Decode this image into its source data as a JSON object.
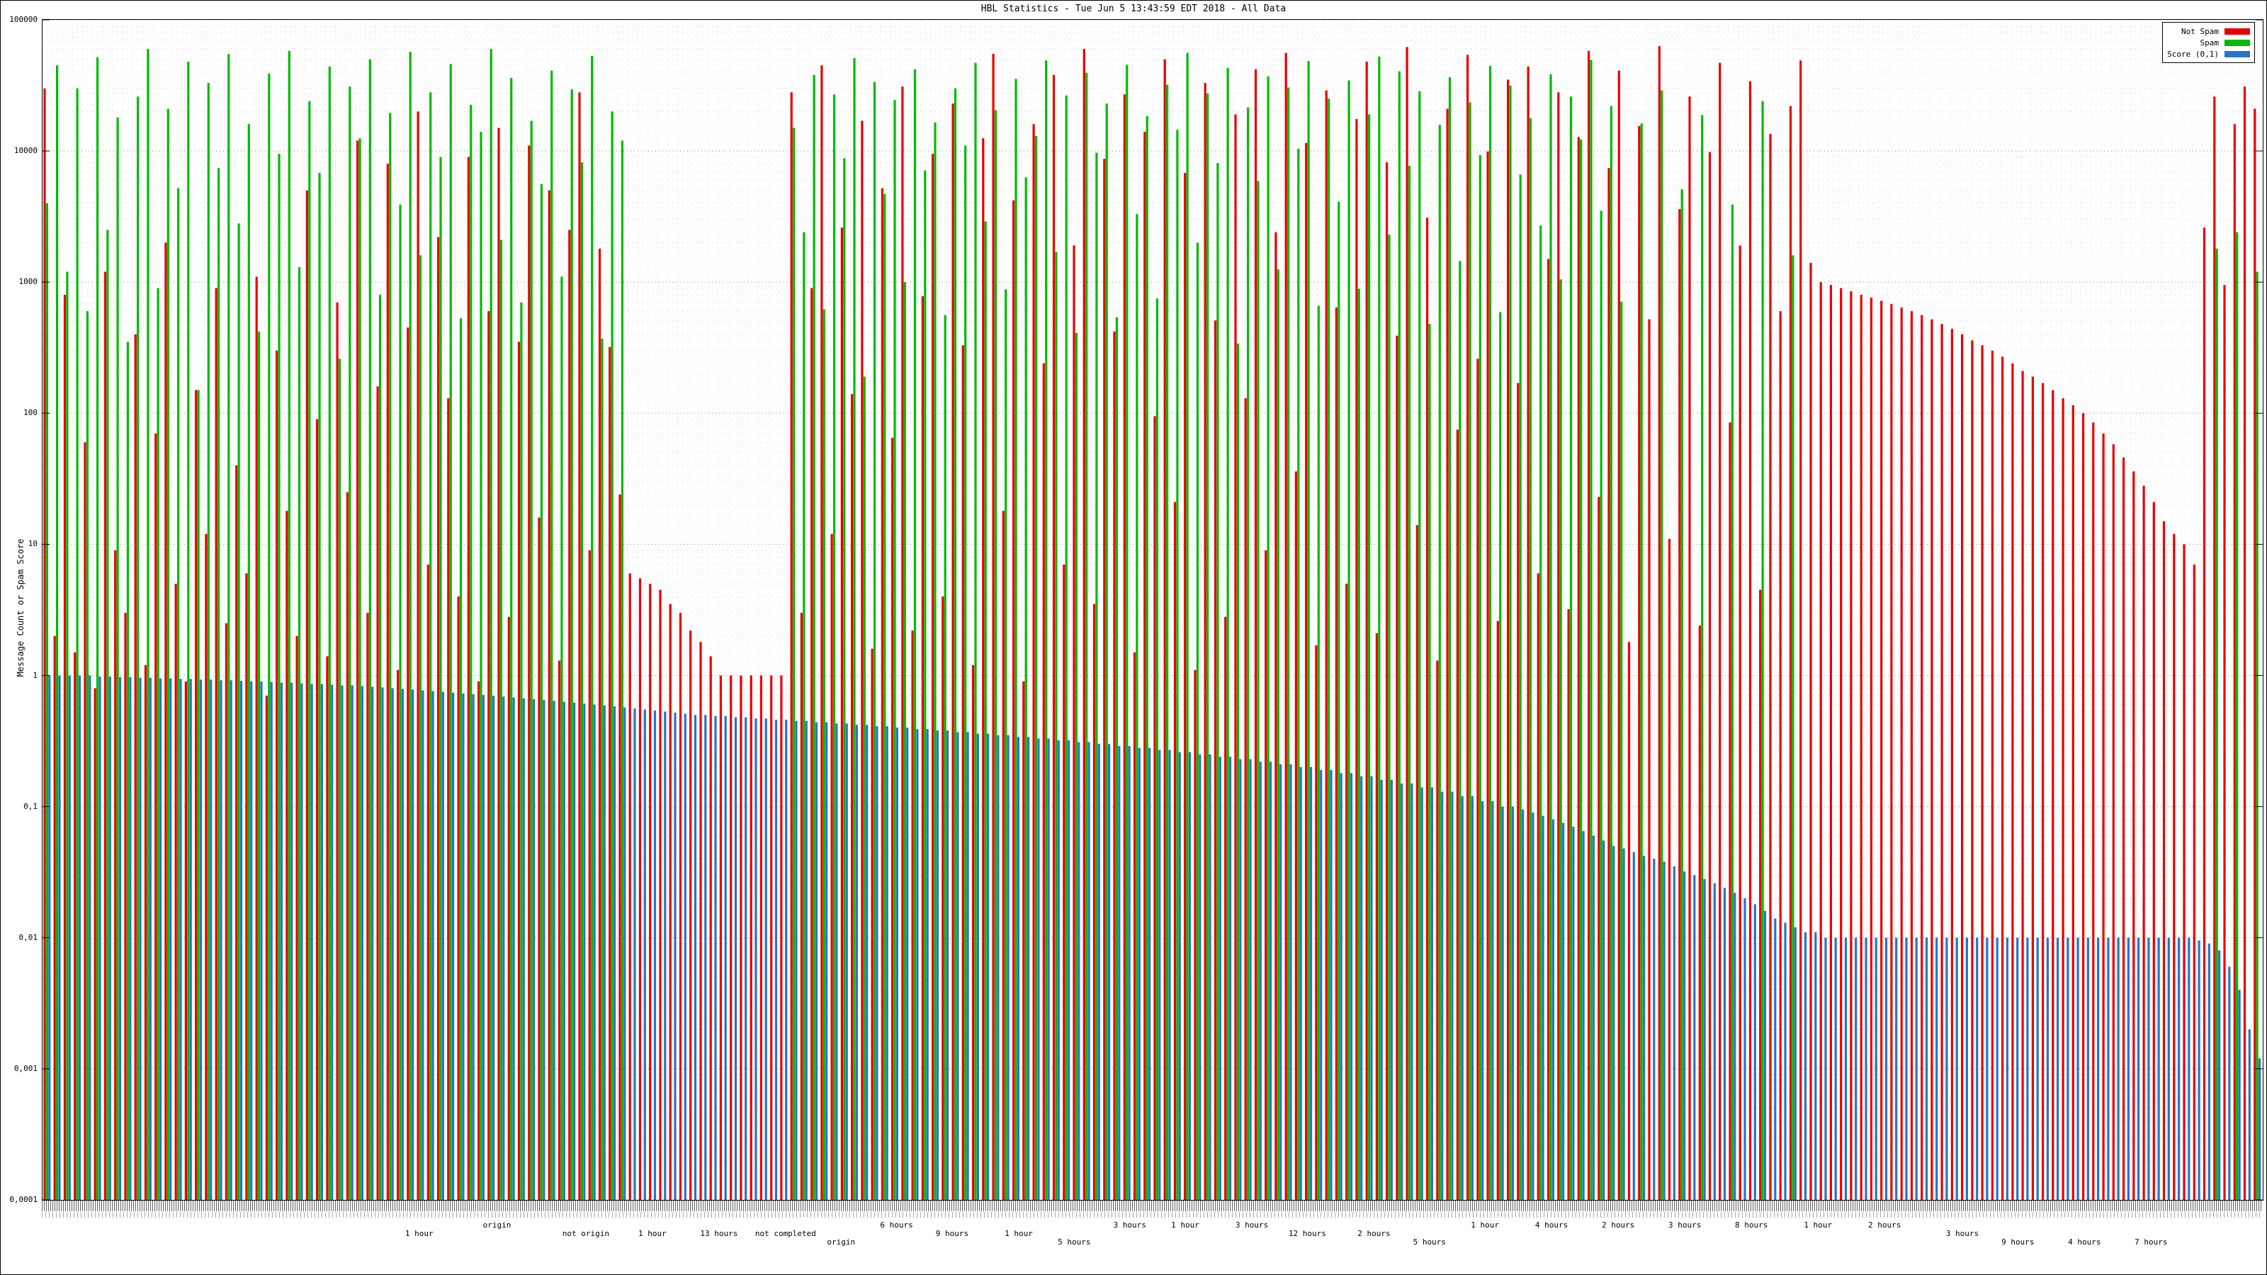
{
  "title": "HBL Statistics - Tue Jun 5 13:43:59 EDT 2018 - All Data",
  "chart_data": {
    "type": "bar",
    "title": "HBL Statistics - Tue Jun 5 13:43:59 EDT 2018 - All Data",
    "xlabel": "",
    "ylabel": "Message Count or Spam Score",
    "y_scale": "log",
    "ylim": [
      0.0001,
      100000
    ],
    "y_tick_labels": [
      "100000",
      "10000",
      "1000",
      "100",
      "10",
      "1",
      "0,1",
      "0,01",
      "0,001",
      "0,0001"
    ],
    "grid": true,
    "legend_position": "top-right",
    "x_count": 220,
    "x_labels_illegible": true,
    "series": [
      {
        "name": "Not Spam",
        "color": "#e80000",
        "values": [
          30000,
          2,
          800,
          1.5,
          60,
          0.8,
          1200,
          9,
          3,
          400,
          1.2,
          70,
          2000,
          5,
          0.9,
          150,
          12,
          900,
          2.5,
          40,
          6,
          1100,
          0.7,
          300,
          18,
          2,
          5000,
          90,
          1.4,
          700,
          25,
          12000,
          3,
          160,
          8000,
          1.1,
          450,
          20000,
          7,
          2200,
          130,
          4,
          9000,
          0.9,
          600,
          15000,
          2.8,
          350,
          11000,
          16,
          5000,
          1.3,
          2500,
          28000,
          9,
          1800,
          320,
          24,
          6,
          5.5,
          5,
          4.5,
          3.5,
          3,
          2.2,
          1.8,
          1.4,
          1,
          1,
          1,
          1,
          1,
          1,
          1,
          28000,
          3,
          900,
          45000,
          12,
          2600,
          140,
          17000,
          1.6,
          5200,
          65,
          31000,
          2.2,
          780,
          9500,
          4,
          23000,
          330,
          1.2,
          12500,
          55000,
          18,
          4200,
          0.9,
          16000,
          240,
          38000,
          7,
          1900,
          60000,
          3.5,
          8700,
          420,
          27000,
          1.5,
          14000,
          95,
          50000,
          21,
          6800,
          1.1,
          33000,
          510,
          2.8,
          19000,
          130,
          42000,
          9,
          2400,
          56000,
          36,
          11500,
          1.7,
          29000,
          640,
          5,
          17500,
          48000,
          2.1,
          8200,
          390,
          62000,
          14,
          3100,
          1.3,
          21000,
          75,
          54000,
          260,
          9900,
          2.6,
          35000,
          170,
          44000,
          6,
          1500,
          28000,
          3.2,
          12800,
          58000,
          23,
          7400,
          41000,
          1.8,
          15500,
          520,
          63000,
          11,
          3600,
          26000,
          2.4,
          9800,
          47000,
          85,
          1900,
          34000,
          4.5,
          13500,
          600,
          22000,
          49000,
          1400,
          1000,
          950,
          900,
          850,
          800,
          760,
          720,
          680,
          640,
          600,
          560,
          520,
          480,
          440,
          400,
          360,
          330,
          300,
          270,
          240,
          210,
          190,
          170,
          150,
          130,
          115,
          100,
          85,
          70,
          58,
          46,
          36,
          28,
          21,
          15,
          12,
          10,
          7,
          2600,
          26000,
          950,
          16000,
          31000,
          21000
        ]
      },
      {
        "name": "Spam",
        "color": "#00bb00",
        "values": [
          4000,
          45000,
          1200,
          30000,
          600,
          52000,
          2500,
          18000,
          350,
          26000,
          60000,
          900,
          21000,
          5200,
          48000,
          150,
          33000,
          7400,
          55000,
          2800,
          16000,
          420,
          39000,
          9500,
          58000,
          1300,
          24000,
          6800,
          44000,
          260,
          31000,
          12500,
          50000,
          800,
          19500,
          3900,
          57000,
          1600,
          28000,
          9000,
          46000,
          530,
          22500,
          14000,
          60000,
          2100,
          36000,
          700,
          17000,
          5600,
          41000,
          1100,
          29500,
          8200,
          53000,
          370,
          20000,
          12000,
          0,
          0,
          0,
          0,
          0,
          0,
          0,
          0,
          0,
          0,
          0,
          0,
          0,
          0,
          0,
          0,
          15000,
          2400,
          38000,
          620,
          27000,
          8800,
          51000,
          190,
          33500,
          4700,
          24500,
          1000,
          42000,
          7100,
          16500,
          560,
          30000,
          11000,
          47000,
          2900,
          20500,
          880,
          35500,
          6300,
          13000,
          49000,
          1700,
          26500,
          410,
          39500,
          9700,
          23000,
          540,
          45500,
          3300,
          18500,
          750,
          32000,
          14500,
          56000,
          2000,
          27500,
          8100,
          43000,
          340,
          21500,
          5900,
          37000,
          1250,
          30500,
          10400,
          48500,
          660,
          25000,
          4100,
          34500,
          890,
          19000,
          52500,
          2300,
          40500,
          7700,
          28500,
          480,
          15800,
          36500,
          1450,
          23500,
          9300,
          44500,
          590,
          31500,
          6600,
          17800,
          2700,
          38500,
          1050,
          26000,
          12200,
          49500,
          3500,
          22000,
          710,
          0,
          16200,
          0,
          29000,
          0,
          5100,
          0,
          18800,
          0,
          0,
          3900,
          0,
          0,
          24000,
          0,
          0,
          1600,
          0,
          0,
          0,
          0,
          0,
          0,
          0,
          0,
          0,
          0,
          0,
          0,
          0,
          0,
          0,
          0,
          0,
          0,
          0,
          0,
          0,
          0,
          0,
          0,
          0,
          0,
          0,
          0,
          0,
          0,
          0,
          0,
          0,
          0,
          0,
          0,
          0,
          0,
          0,
          0,
          0,
          1800,
          0,
          2400,
          0,
          1200
        ]
      },
      {
        "name": "Score (0,1)",
        "color": "#2b72c8",
        "values": [
          1,
          1,
          1,
          1,
          1,
          0.98,
          0.98,
          0.97,
          0.97,
          0.96,
          0.96,
          0.95,
          0.95,
          0.94,
          0.94,
          0.93,
          0.93,
          0.92,
          0.92,
          0.91,
          0.9,
          0.9,
          0.89,
          0.88,
          0.88,
          0.87,
          0.86,
          0.86,
          0.85,
          0.84,
          0.84,
          0.83,
          0.82,
          0.81,
          0.8,
          0.79,
          0.78,
          0.77,
          0.76,
          0.75,
          0.74,
          0.73,
          0.72,
          0.71,
          0.7,
          0.69,
          0.68,
          0.67,
          0.66,
          0.65,
          0.64,
          0.63,
          0.62,
          0.61,
          0.6,
          0.59,
          0.58,
          0.57,
          0.56,
          0.55,
          0.54,
          0.53,
          0.52,
          0.51,
          0.5,
          0.5,
          0.49,
          0.49,
          0.48,
          0.48,
          0.47,
          0.47,
          0.46,
          0.46,
          0.45,
          0.45,
          0.44,
          0.44,
          0.43,
          0.43,
          0.42,
          0.42,
          0.41,
          0.41,
          0.4,
          0.4,
          0.39,
          0.39,
          0.38,
          0.38,
          0.37,
          0.37,
          0.36,
          0.36,
          0.35,
          0.35,
          0.34,
          0.34,
          0.33,
          0.33,
          0.32,
          0.32,
          0.31,
          0.31,
          0.3,
          0.3,
          0.29,
          0.29,
          0.28,
          0.28,
          0.27,
          0.27,
          0.26,
          0.26,
          0.25,
          0.25,
          0.24,
          0.24,
          0.23,
          0.23,
          0.22,
          0.22,
          0.21,
          0.21,
          0.2,
          0.2,
          0.19,
          0.19,
          0.18,
          0.18,
          0.17,
          0.17,
          0.16,
          0.16,
          0.15,
          0.15,
          0.14,
          0.14,
          0.13,
          0.13,
          0.12,
          0.12,
          0.11,
          0.11,
          0.1,
          0.1,
          0.095,
          0.09,
          0.085,
          0.08,
          0.075,
          0.07,
          0.065,
          0.06,
          0.055,
          0.05,
          0.048,
          0.045,
          0.042,
          0.04,
          0.038,
          0.035,
          0.032,
          0.03,
          0.028,
          0.026,
          0.024,
          0.022,
          0.02,
          0.018,
          0.016,
          0.014,
          0.013,
          0.012,
          0.011,
          0.011,
          0.01,
          0.01,
          0.01,
          0.01,
          0.01,
          0.01,
          0.01,
          0.01,
          0.01,
          0.01,
          0.01,
          0.01,
          0.01,
          0.01,
          0.01,
          0.01,
          0.01,
          0.01,
          0.01,
          0.01,
          0.01,
          0.01,
          0.01,
          0.01,
          0.01,
          0.01,
          0.01,
          0.01,
          0.01,
          0.01,
          0.01,
          0.01,
          0.01,
          0.01,
          0.01,
          0.01,
          0.01,
          0.0095,
          0.009,
          0.008,
          0.006,
          0.004,
          0.002,
          0.0012
        ]
      }
    ]
  },
  "x_axis": {
    "dense_labels_illegible": true,
    "sublabels": [
      {
        "t": "1 hour",
        "x": 0.17
      },
      {
        "t": "origin",
        "x": 0.205
      },
      {
        "t": "not origin",
        "x": 0.245
      },
      {
        "t": "1 hour",
        "x": 0.275
      },
      {
        "t": "13 hours",
        "x": 0.305
      },
      {
        "t": "not completed",
        "x": 0.335
      },
      {
        "t": "origin",
        "x": 0.36
      },
      {
        "t": "6 hours",
        "x": 0.385
      },
      {
        "t": "9 hours",
        "x": 0.41
      },
      {
        "t": "1 hour",
        "x": 0.44
      },
      {
        "t": "5 hours",
        "x": 0.465
      },
      {
        "t": "3 hours",
        "x": 0.49
      },
      {
        "t": "1 hour",
        "x": 0.515
      },
      {
        "t": "3 hours",
        "x": 0.545
      },
      {
        "t": "12 hours",
        "x": 0.57
      },
      {
        "t": "2 hours",
        "x": 0.6
      },
      {
        "t": "5 hours",
        "x": 0.625
      },
      {
        "t": "1 hour",
        "x": 0.65
      },
      {
        "t": "4 hours",
        "x": 0.68
      },
      {
        "t": "2 hours",
        "x": 0.71
      },
      {
        "t": "3 hours",
        "x": 0.74
      },
      {
        "t": "8 hours",
        "x": 0.77
      },
      {
        "t": "1 hour",
        "x": 0.8
      },
      {
        "t": "2 hours",
        "x": 0.83
      },
      {
        "t": "3 hours",
        "x": 0.865
      },
      {
        "t": "9 hours",
        "x": 0.89
      },
      {
        "t": "4 hours",
        "x": 0.92
      },
      {
        "t": "7 hours",
        "x": 0.95
      }
    ]
  }
}
